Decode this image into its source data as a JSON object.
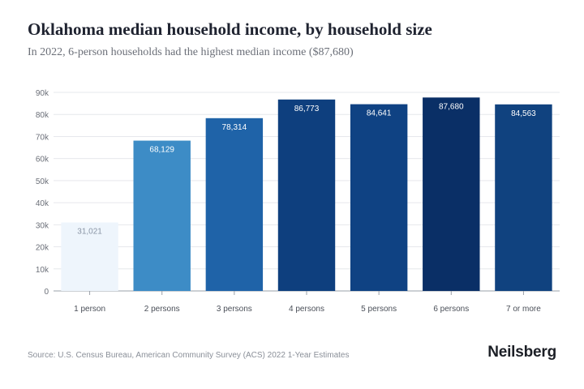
{
  "header": {
    "title": "Oklahoma median household income, by household size",
    "subtitle": "In 2022, 6-person households had the highest median income ($87,680)"
  },
  "footer": {
    "source": "Source: U.S. Census Bureau, American Community Survey (ACS) 2022 1-Year Estimates",
    "brand": "Neilsberg"
  },
  "chart_data": {
    "type": "bar",
    "categories": [
      "1 person",
      "2 persons",
      "3 persons",
      "4 persons",
      "5 persons",
      "6 persons",
      "7 or more"
    ],
    "values": [
      31021,
      68129,
      78314,
      86773,
      84641,
      87680,
      84563
    ],
    "value_labels": [
      "31,021",
      "68,129",
      "78,314",
      "86,773",
      "84,641",
      "87,680",
      "84,563"
    ],
    "yticks": [
      0,
      10000,
      20000,
      30000,
      40000,
      50000,
      60000,
      70000,
      80000,
      90000
    ],
    "ytick_labels": [
      "0",
      "10k",
      "20k",
      "30k",
      "40k",
      "50k",
      "60k",
      "70k",
      "80k",
      "90k"
    ],
    "ylim": [
      0,
      90000
    ],
    "grid": true,
    "colors": [
      "#eef5fc",
      "#3d8cc6",
      "#1f63a8",
      "#0e3f7e",
      "#0f4283",
      "#0a2f66",
      "#10427f"
    ],
    "label_colors": [
      "#8a95a5",
      "#ffffff",
      "#ffffff",
      "#ffffff",
      "#ffffff",
      "#ffffff",
      "#ffffff"
    ]
  }
}
